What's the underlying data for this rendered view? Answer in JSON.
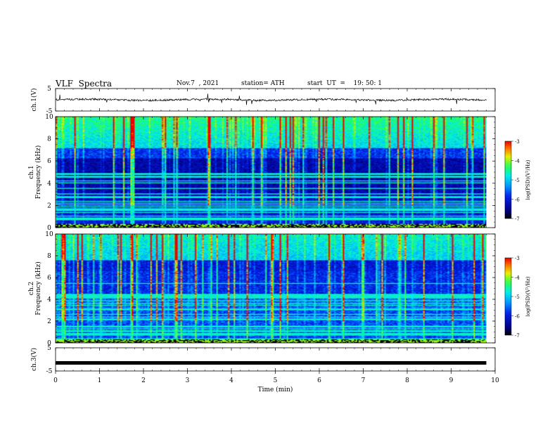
{
  "header": {
    "title": "VLF  Spectra",
    "date": "Nov.7  , 2021",
    "station": "station= ATH",
    "start_ut": "start  UT  =    19: 50: 1"
  },
  "chart_data": [
    {
      "type": "line",
      "panel": "ch1-waveform",
      "ylabel": "ch.1(V)",
      "yticks": [
        "5",
        "-5"
      ],
      "ylim": [
        -5,
        5
      ],
      "xlim": [
        0,
        10
      ],
      "series": [
        {
          "mean_level": 0,
          "noise_amplitude": 0.8,
          "x_end": 9.8
        }
      ]
    },
    {
      "type": "heatmap",
      "panel": "ch1-spectrogram",
      "ylabel": "ch.1\nFrequency (kHz)",
      "ylabel_lines": [
        "ch.1",
        "Frequency (kHz)"
      ],
      "yticks": [
        "0",
        "2",
        "4",
        "6",
        "8",
        "10"
      ],
      "ylim": [
        0,
        10
      ],
      "xlim": [
        0,
        10
      ],
      "x_end": 9.8,
      "colorbar": {
        "label": "log(PSD)(V²/Hz)",
        "ticks": [
          "-3",
          "-4",
          "-5",
          "-6",
          "-7"
        ],
        "range": [
          -7,
          -3
        ]
      }
    },
    {
      "type": "heatmap",
      "panel": "ch2-spectrogram",
      "ylabel": "ch.2\nFrequency (kHz)",
      "ylabel_lines": [
        "ch.2",
        "Frequency (kHz)"
      ],
      "yticks": [
        "0",
        "2",
        "4",
        "6",
        "8",
        "10"
      ],
      "ylim": [
        0,
        10
      ],
      "xlim": [
        0,
        10
      ],
      "x_end": 9.8,
      "colorbar": {
        "label": "log(PSD)(V²/Hz)",
        "ticks": [
          "-3",
          "-4",
          "-5",
          "-6",
          "-7"
        ],
        "range": [
          -7,
          -3
        ]
      }
    },
    {
      "type": "line",
      "panel": "ch3-waveform",
      "ylabel": "ch.3(V)",
      "yticks": [
        "5",
        "-5"
      ],
      "ylim": [
        -5,
        5
      ],
      "xlim": [
        0,
        10
      ],
      "series": [
        {
          "mean_level": -1.5,
          "x_end": 9.8
        }
      ]
    }
  ],
  "xaxis": {
    "label": "Time  (min)",
    "ticks": [
      "0",
      "1",
      "2",
      "3",
      "4",
      "5",
      "6",
      "7",
      "8",
      "9",
      "10"
    ],
    "range": [
      0,
      10
    ]
  }
}
